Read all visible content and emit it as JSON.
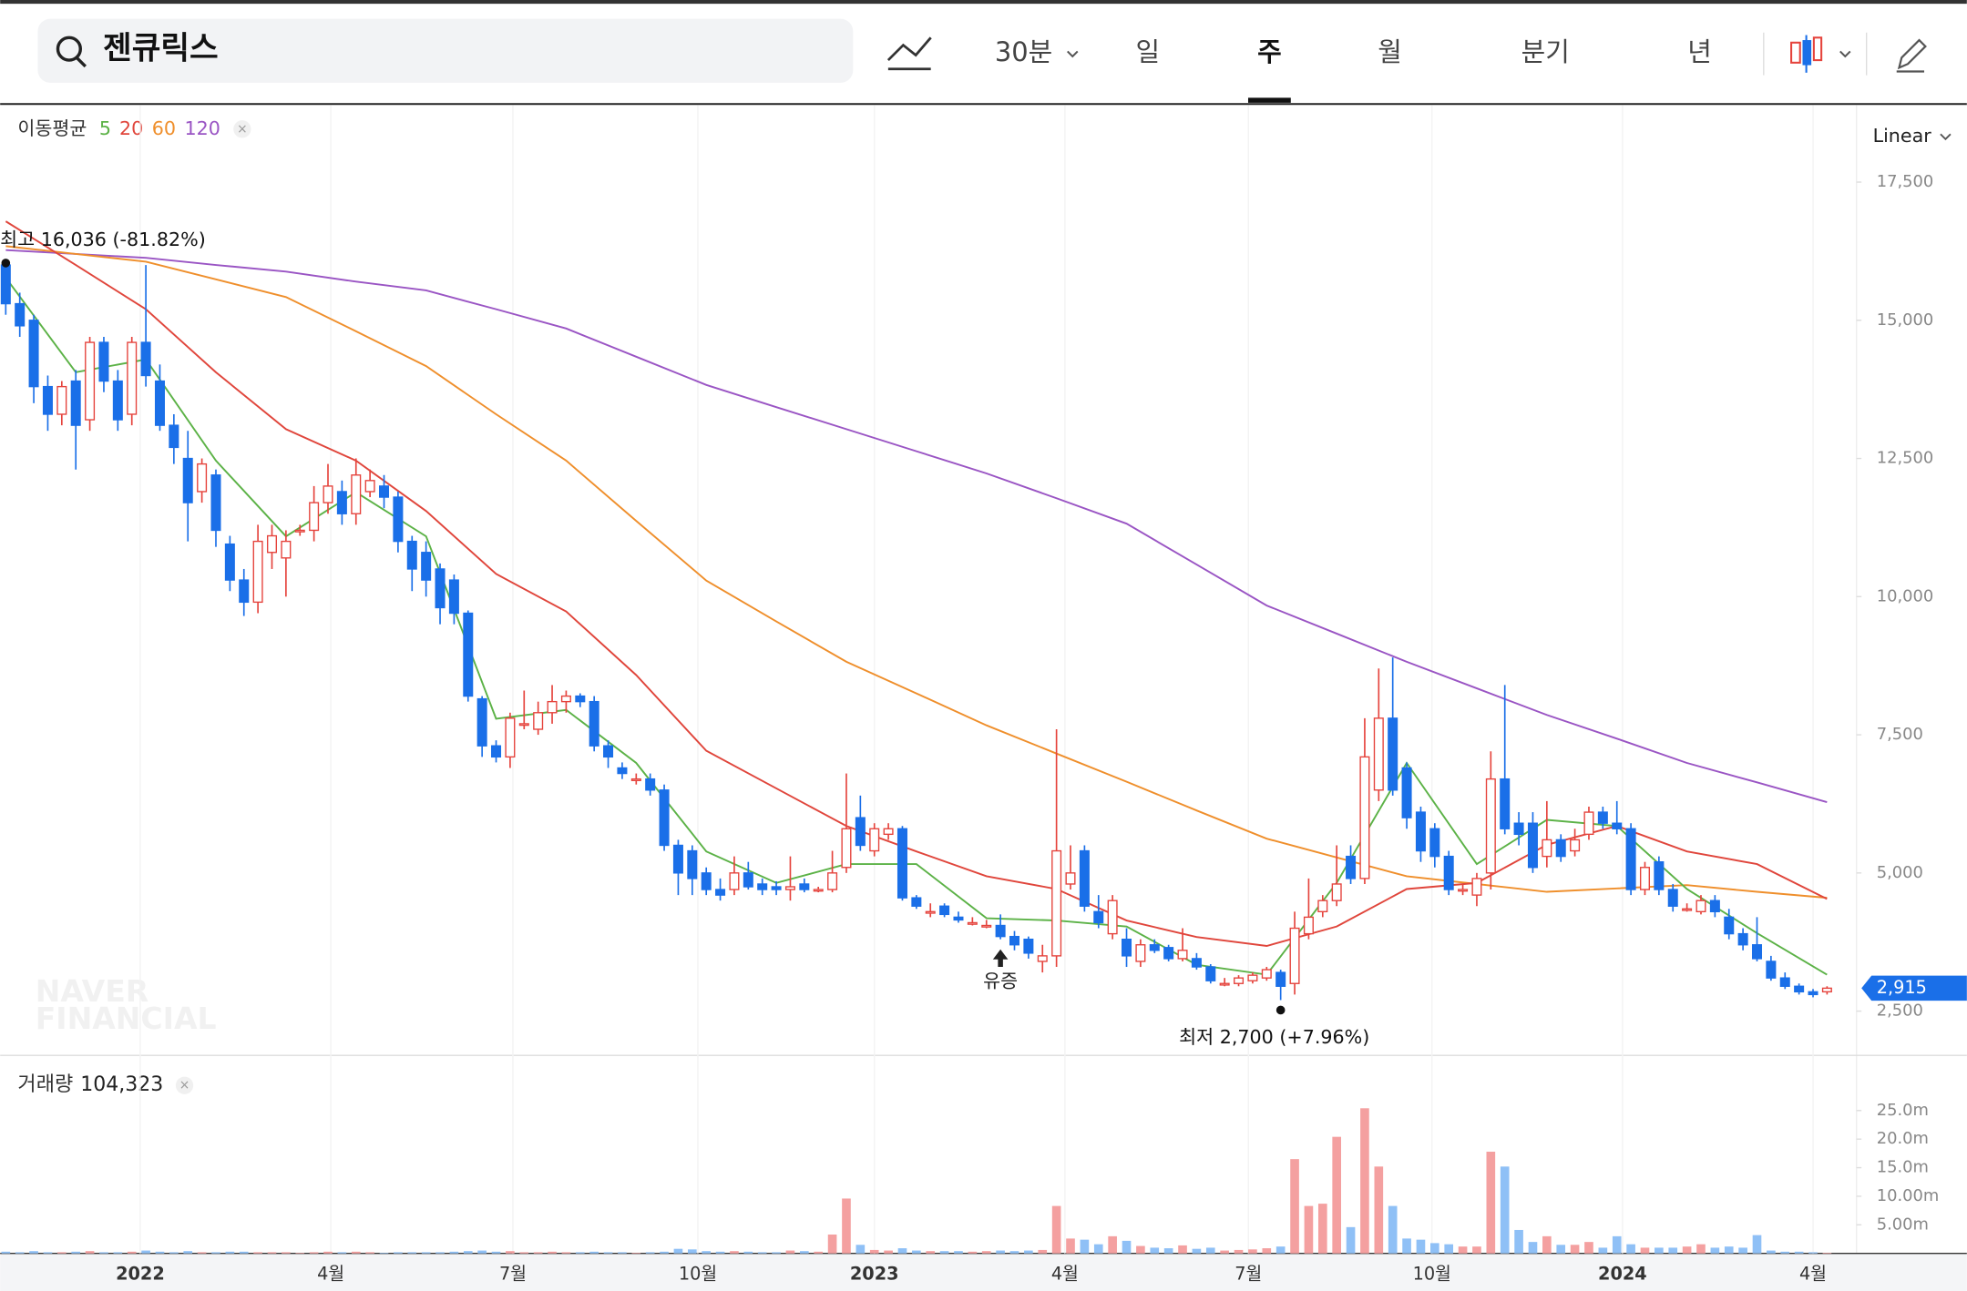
{
  "ui": {
    "search": "젠큐릭스",
    "interval": "30분",
    "periods": [
      "일",
      "주",
      "월",
      "분기",
      "년"
    ],
    "active_period": 1,
    "scale": "Linear",
    "watermark": [
      "NAVER",
      "FINANCIAL"
    ]
  },
  "chart_data": {
    "type": "candlestick",
    "xlim": [
      -0.4,
      132.1
    ],
    "xticks": [
      {
        "value": 9.6,
        "label": "2022"
      },
      {
        "value": 23.2,
        "label": "4월"
      },
      {
        "value": 36.2,
        "label": "7월"
      },
      {
        "value": 49.4,
        "label": "10월"
      },
      {
        "value": 62,
        "label": "2023"
      },
      {
        "value": 75.6,
        "label": "4월"
      },
      {
        "value": 88.7,
        "label": "7월"
      },
      {
        "value": 101.8,
        "label": "10월"
      },
      {
        "value": 115.4,
        "label": "2024"
      },
      {
        "value": 129,
        "label": "4월"
      }
    ],
    "ylim": [
      1745,
      18890
    ],
    "yticks": [
      {
        "value": 2500,
        "label": "2,500"
      },
      {
        "value": 5000,
        "label": "5,000"
      },
      {
        "value": 7500,
        "label": "7,500"
      },
      {
        "value": 10000,
        "label": "10,000"
      },
      {
        "value": 12500,
        "label": "12,500"
      },
      {
        "value": 15000,
        "label": "15,000"
      },
      {
        "value": 17500,
        "label": "17,500"
      }
    ],
    "up_color": "#e5433c",
    "down_color": "#1a6fe8",
    "open": [
      16000,
      15300,
      15000,
      13800,
      13300,
      13900,
      13200,
      14600,
      13900,
      13300,
      14600,
      13900,
      13100,
      12500,
      11900,
      12200,
      10950,
      10300,
      9900,
      10800,
      10700,
      11200,
      11200,
      11700,
      11900,
      11500,
      11900,
      12000,
      11800,
      11000,
      10800,
      10500,
      10300,
      9700,
      8150,
      7300,
      7100,
      7700,
      7600,
      7900,
      8100,
      8200,
      8100,
      7300,
      6900,
      6700,
      6700,
      6500,
      5500,
      5400,
      5000,
      4700,
      4700,
      5000,
      4800,
      4750,
      4700,
      4800,
      4700,
      4700,
      5100,
      6000,
      5400,
      5700,
      5800,
      4550,
      4300,
      4400,
      4200,
      4100,
      4050,
      4050,
      3850,
      3800,
      3400,
      3500,
      4800,
      5400,
      4300,
      3900,
      3800,
      3400,
      3700,
      3650,
      3450,
      3450,
      3300,
      3000,
      3000,
      3050,
      3100,
      3200,
      3000,
      3900,
      4300,
      4500,
      5300,
      4900,
      6500,
      7800,
      6900,
      6100,
      5800,
      5300,
      4700,
      4600,
      5000,
      6700,
      5900,
      5900,
      5300,
      5600,
      5400,
      5700,
      6100,
      5900,
      5800,
      4700,
      5200,
      4700,
      4350,
      4300,
      4500,
      4200,
      3900,
      3700,
      3400,
      3100,
      2950,
      2850,
      2850
    ],
    "high": [
      16036,
      15500,
      15100,
      14000,
      13900,
      14100,
      14700,
      14700,
      14100,
      14700,
      16000,
      14200,
      13300,
      13000,
      12500,
      12300,
      11100,
      10500,
      11300,
      11300,
      11200,
      11300,
      12000,
      12400,
      12100,
      12500,
      12300,
      12200,
      11900,
      11100,
      11000,
      10600,
      10400,
      9750,
      8200,
      7400,
      7900,
      8300,
      8100,
      8400,
      8300,
      8250,
      8200,
      7400,
      7000,
      6800,
      6800,
      6600,
      5600,
      5500,
      5100,
      4900,
      5300,
      5200,
      4900,
      4850,
      5300,
      4900,
      4750,
      5400,
      6800,
      6400,
      5900,
      5900,
      5850,
      4600,
      4450,
      4450,
      4300,
      4200,
      4150,
      4250,
      3950,
      3850,
      3700,
      7600,
      5500,
      5500,
      4600,
      4600,
      4000,
      3800,
      3800,
      3700,
      4000,
      3550,
      3350,
      3100,
      3150,
      3200,
      3300,
      3250,
      4300,
      4900,
      4600,
      5500,
      5500,
      7800,
      8700,
      8900,
      7000,
      6200,
      5900,
      5400,
      4800,
      5000,
      7200,
      8400,
      6100,
      6100,
      6300,
      5700,
      5800,
      6200,
      6200,
      6300,
      5900,
      5200,
      5300,
      4800,
      4450,
      4600,
      4600,
      4350,
      4000,
      4200,
      3500,
      3200,
      3000,
      2900,
      2950
    ],
    "low": [
      15100,
      14700,
      13500,
      13000,
      13100,
      12300,
      13000,
      13700,
      13000,
      13100,
      13800,
      13000,
      12400,
      11000,
      11700,
      10900,
      10100,
      9650,
      9700,
      10500,
      10000,
      11100,
      11000,
      11500,
      11300,
      11300,
      11800,
      11600,
      10800,
      10100,
      10000,
      9500,
      9500,
      8100,
      7100,
      7000,
      6900,
      7600,
      7500,
      7700,
      7900,
      8000,
      7200,
      6900,
      6700,
      6600,
      6400,
      5400,
      4600,
      4600,
      4600,
      4500,
      4600,
      4700,
      4600,
      4600,
      4500,
      4650,
      4650,
      4650,
      5000,
      5400,
      5300,
      5600,
      4500,
      4350,
      4200,
      4200,
      4100,
      4050,
      4000,
      3800,
      3600,
      3450,
      3200,
      3300,
      4700,
      4300,
      4000,
      3800,
      3300,
      3300,
      3550,
      3400,
      3400,
      3250,
      3000,
      2950,
      2950,
      3000,
      3050,
      2700,
      2800,
      3800,
      4200,
      4400,
      4800,
      4800,
      6300,
      6400,
      5800,
      5200,
      5100,
      4600,
      4600,
      4400,
      4700,
      5700,
      5500,
      5000,
      5100,
      5200,
      5300,
      5600,
      5800,
      5700,
      4600,
      4600,
      4600,
      4300,
      4300,
      4250,
      4200,
      3800,
      3600,
      3400,
      3050,
      2900,
      2800,
      2750,
      2800
    ],
    "close": [
      15300,
      14900,
      13800,
      13300,
      13800,
      13100,
      14600,
      13900,
      13200,
      14600,
      14000,
      13100,
      12700,
      11700,
      12400,
      11200,
      10300,
      9900,
      11000,
      11100,
      11000,
      11200,
      11700,
      12000,
      11500,
      12200,
      12100,
      11800,
      11000,
      10500,
      10300,
      9800,
      9700,
      8200,
      7300,
      7100,
      7800,
      7700,
      7900,
      8100,
      8200,
      8100,
      7300,
      7100,
      6800,
      6700,
      6500,
      5500,
      5000,
      4900,
      4700,
      4600,
      5000,
      4750,
      4700,
      4700,
      4750,
      4700,
      4700,
      5000,
      5800,
      5500,
      5800,
      5800,
      4550,
      4400,
      4300,
      4250,
      4150,
      4100,
      4050,
      3850,
      3700,
      3550,
      3500,
      5400,
      5000,
      4400,
      4100,
      4500,
      3500,
      3700,
      3600,
      3450,
      3600,
      3300,
      3050,
      3000,
      3100,
      3150,
      3250,
      2950,
      4000,
      4200,
      4500,
      4800,
      4900,
      7100,
      7800,
      6500,
      6000,
      5400,
      5300,
      4700,
      4700,
      4900,
      6700,
      5800,
      5700,
      5100,
      5600,
      5300,
      5600,
      6100,
      5900,
      5800,
      4700,
      5100,
      4700,
      4400,
      4350,
      4500,
      4300,
      3900,
      3700,
      3450,
      3100,
      2950,
      2850,
      2800,
      2915
    ],
    "last_price": {
      "value": 2915,
      "label": "2,915"
    },
    "high_note": "최고 16,036 (-81.82%)",
    "low_note": "최저 2,700 (+7.96%)",
    "event": {
      "label": "유증",
      "index": 71
    },
    "ma": {
      "label": "이동평균",
      "x": [
        0,
        5,
        10,
        15,
        20,
        25,
        30,
        35,
        40,
        45,
        50,
        55,
        60,
        65,
        70,
        75,
        80,
        85,
        90,
        95,
        100,
        105,
        110,
        115,
        120,
        125,
        130
      ],
      "series": [
        {
          "name": "5",
          "color": "#5cb247",
          "values": [
            15770,
            14060,
            14290,
            12460,
            11090,
            11890,
            11090,
            7790,
            7950,
            6990,
            5390,
            4820,
            5160,
            5160,
            4180,
            4140,
            4030,
            3340,
            3160,
            4820,
            6990,
            5160,
            5960,
            5850,
            4710,
            3910,
            3160
          ]
        },
        {
          "name": "20",
          "color": "#e0463c",
          "values": [
            16790,
            16000,
            15200,
            14060,
            13030,
            12460,
            11550,
            10410,
            9730,
            8580,
            7210,
            6530,
            5850,
            5390,
            4940,
            4710,
            4140,
            3840,
            3680,
            4030,
            4710,
            4820,
            5510,
            5850,
            5390,
            5160,
            4530
          ]
        },
        {
          "name": "60",
          "color": "#ef8f2c",
          "values": [
            16340,
            16200,
            16060,
            15740,
            15420,
            14800,
            14170,
            13300,
            12460,
            11370,
            10290,
            9550,
            8820,
            8250,
            7670,
            7160,
            6650,
            6130,
            5620,
            5280,
            4940,
            4800,
            4660,
            4720,
            4780,
            4660,
            4550
          ]
        },
        {
          "name": "120",
          "color": "#9a55c4",
          "values": [
            16270,
            16200,
            16130,
            16000,
            15880,
            15700,
            15540,
            15200,
            14850,
            14340,
            13830,
            13430,
            13030,
            12630,
            12230,
            11780,
            11320,
            10580,
            9840,
            9330,
            8820,
            8340,
            7860,
            7430,
            6990,
            6640,
            6280
          ]
        }
      ]
    },
    "volume_title": "거래량",
    "volume_current": "104,323",
    "volume_up_color": "#f4a0a0",
    "volume_down_color": "#8fc0f6",
    "volume_ylim": [
      0,
      34
    ],
    "volume_yticks": [
      {
        "value": 5,
        "label": "5.00m"
      },
      {
        "value": 10,
        "label": "10.00m"
      },
      {
        "value": 15,
        "label": "15.0m"
      },
      {
        "value": 20,
        "label": "20.0m"
      },
      {
        "value": 25,
        "label": "25.0m"
      }
    ],
    "volume": [
      0.3,
      0.2,
      0.4,
      0.2,
      0.2,
      0.3,
      0.4,
      0.2,
      0.2,
      0.3,
      0.5,
      0.3,
      0.2,
      0.4,
      0.2,
      0.2,
      0.3,
      0.3,
      0.2,
      0.2,
      0.2,
      0.1,
      0.2,
      0.3,
      0.2,
      0.3,
      0.2,
      0.1,
      0.2,
      0.2,
      0.2,
      0.2,
      0.3,
      0.4,
      0.5,
      0.3,
      0.4,
      0.2,
      0.2,
      0.3,
      0.2,
      0.2,
      0.3,
      0.2,
      0.2,
      0.1,
      0.2,
      0.3,
      0.8,
      0.7,
      0.4,
      0.3,
      0.4,
      0.3,
      0.2,
      0.2,
      0.5,
      0.4,
      0.3,
      3.3,
      9.6,
      1.5,
      0.6,
      0.5,
      0.9,
      0.5,
      0.4,
      0.4,
      0.4,
      0.3,
      0.4,
      0.5,
      0.4,
      0.5,
      0.6,
      8.3,
      2.6,
      2.4,
      1.6,
      3.0,
      2.2,
      1.3,
      1.0,
      0.9,
      1.4,
      0.8,
      1.0,
      0.5,
      0.6,
      0.7,
      0.9,
      1.2,
      16.5,
      8.3,
      8.7,
      20.4,
      4.6,
      25.4,
      15.2,
      8.3,
      2.6,
      2.4,
      1.8,
      1.6,
      1.2,
      1.2,
      17.8,
      15.2,
      4.1,
      2.0,
      3.0,
      1.5,
      1.5,
      2.0,
      1.0,
      3.0,
      1.6,
      1.0,
      1.0,
      1.0,
      1.2,
      1.6,
      1.0,
      1.2,
      1.0,
      3.2,
      0.5,
      0.3,
      0.3,
      0.2,
      0.104323
    ]
  }
}
